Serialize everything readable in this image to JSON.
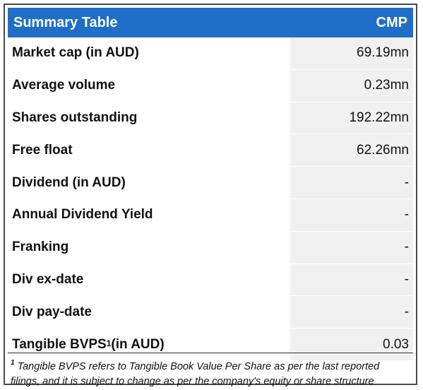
{
  "table": {
    "header": {
      "title": "Summary Table",
      "column": "CMP"
    },
    "rows": [
      {
        "label": "Market cap (in AUD)",
        "value": "69.19mn"
      },
      {
        "label": "Average volume",
        "value": "0.23mn"
      },
      {
        "label": "Shares outstanding",
        "value": "192.22mn"
      },
      {
        "label": "Free float",
        "value": "62.26mn"
      },
      {
        "label": "Dividend (in AUD)",
        "value": "-"
      },
      {
        "label": "Annual Dividend Yield",
        "value": "-"
      },
      {
        "label": "Franking",
        "value": "-"
      },
      {
        "label": "Div ex-date",
        "value": "-"
      },
      {
        "label": "Div pay-date",
        "value": "-"
      },
      {
        "label_main": "Tangible BVPS",
        "label_sup": "1",
        "label_tail": " (in AUD)",
        "value": "0.03"
      }
    ]
  },
  "footnote": {
    "marker": "1",
    "text": " Tangible BVPS refers to Tangible Book Value Per Share as per the last reported filings, and it is subject to change as per the company's equity or share structure"
  },
  "colors": {
    "header_bg": "#1f6fc9",
    "header_text": "#ffffff",
    "value_cell_bg": "#f0f0f0"
  }
}
